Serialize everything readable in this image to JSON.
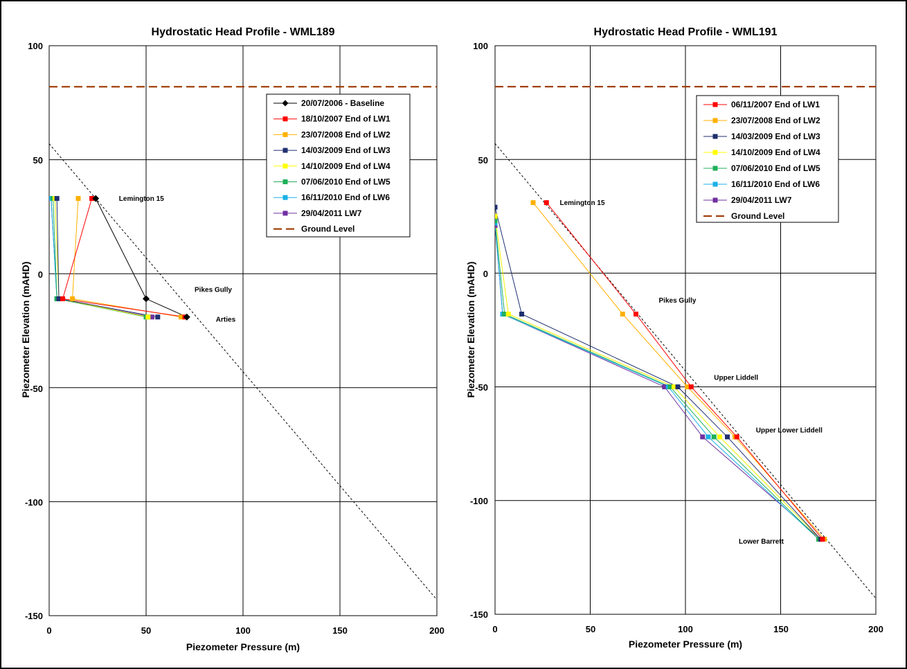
{
  "colors": {
    "baseline": "#000000",
    "lw1": "#ff0000",
    "lw2": "#ffb000",
    "lw3": "#1f2f6f",
    "lw4": "#ffff00",
    "lw5": "#1fb05a",
    "lw6": "#1ab0e8",
    "lw7": "#7030a0",
    "ground": "#a0400a",
    "guide": "#000000"
  },
  "chart_data": [
    {
      "type": "line",
      "title": "Hydrostatic Head Profile - WML189",
      "xlabel": "Piezometer Pressure (m)",
      "ylabel": "Piezometer Elevation (mAHD)",
      "xlim": [
        0,
        200
      ],
      "ylim": [
        -150,
        100
      ],
      "xticks": [
        "0",
        "50",
        "100",
        "150",
        "200"
      ],
      "yticks": [
        "100",
        "50",
        "0",
        "-50",
        "-100",
        "-150"
      ],
      "grid": true,
      "legend_position": "top-right",
      "series": [
        {
          "name": "20/07/2006  - Baseline",
          "color_key": "baseline",
          "marker": "diamond",
          "points": [
            [
              24,
              33
            ],
            [
              50,
              -11
            ],
            [
              71,
              -19
            ]
          ]
        },
        {
          "name": "18/10/2007 End of LW1",
          "color_key": "lw1",
          "marker": "square",
          "points": [
            [
              22,
              33
            ],
            [
              7,
              -11
            ],
            [
              70,
              -19
            ]
          ]
        },
        {
          "name": "23/07/2008 End of LW2",
          "color_key": "lw2",
          "marker": "square",
          "points": [
            [
              15,
              33
            ],
            [
              12,
              -11
            ],
            [
              68,
              -19
            ]
          ]
        },
        {
          "name": "14/03/2009 End of LW3",
          "color_key": "lw3",
          "marker": "square",
          "points": [
            [
              4,
              33
            ],
            [
              5,
              -11
            ],
            [
              56,
              -19
            ]
          ]
        },
        {
          "name": "14/10/2009 End of LW4",
          "color_key": "lw4",
          "marker": "square",
          "points": [
            [
              3,
              33
            ],
            [
              5,
              -11
            ],
            [
              51,
              -19
            ]
          ]
        },
        {
          "name": "07/06/2010 End of LW5",
          "color_key": "lw5",
          "marker": "square",
          "points": [
            [
              2,
              33
            ],
            [
              4,
              -11
            ],
            [
              50,
              -19
            ]
          ]
        },
        {
          "name": "16/11/2010 End of LW6",
          "color_key": "lw6",
          "marker": "square",
          "points": [
            [
              1,
              33
            ],
            [
              4,
              -11
            ],
            [
              51,
              -19
            ]
          ]
        },
        {
          "name": "29/04/2011 LW7",
          "color_key": "lw7",
          "marker": "square",
          "points": [
            [
              1,
              33
            ],
            [
              4,
              -11
            ],
            [
              53,
              -19
            ]
          ]
        },
        {
          "name": "Ground Level",
          "color_key": "ground",
          "style": "dashed-thick",
          "points": [
            [
              0,
              82
            ],
            [
              200,
              82
            ]
          ]
        }
      ],
      "hydrostatic_line": {
        "points": [
          [
            0,
            57
          ],
          [
            200,
            -143
          ]
        ]
      },
      "annotations": [
        {
          "text": "Lemington 15",
          "x": 36,
          "y": 32
        },
        {
          "text": "Pikes Gully",
          "x": 75,
          "y": -8
        },
        {
          "text": "Arties",
          "x": 86,
          "y": -21
        }
      ]
    },
    {
      "type": "line",
      "title": "Hydrostatic Head Profile - WML191",
      "xlabel": "Piezometer Pressure (m)",
      "ylabel": "Piezometer Elevation (mAHD)",
      "xlim": [
        0,
        200
      ],
      "ylim": [
        -150,
        100
      ],
      "xticks": [
        "0",
        "50",
        "100",
        "150",
        "200"
      ],
      "yticks": [
        "100",
        "50",
        "0",
        "-50",
        "-100",
        "-150"
      ],
      "grid": true,
      "legend_position": "top-right",
      "series": [
        {
          "name": "06/11/2007 End of LW1",
          "color_key": "lw1",
          "marker": "square",
          "points": [
            [
              27,
              31
            ],
            [
              74,
              -18
            ],
            [
              103,
              -50
            ],
            [
              127,
              -72
            ],
            [
              172,
              -117
            ]
          ]
        },
        {
          "name": "23/07/2008 End of LW2",
          "color_key": "lw2",
          "marker": "square",
          "points": [
            [
              20,
              31
            ],
            [
              67,
              -18
            ],
            [
              101,
              -50
            ],
            [
              126,
              -72
            ],
            [
              173,
              -117
            ]
          ]
        },
        {
          "name": "14/03/2009 End of LW3",
          "color_key": "lw3",
          "marker": "square",
          "points": [
            [
              0,
              29
            ],
            [
              14,
              -18
            ],
            [
              96,
              -50
            ],
            [
              122,
              -72
            ],
            [
              171,
              -117
            ]
          ]
        },
        {
          "name": "14/10/2009 End of LW4",
          "color_key": "lw4",
          "marker": "square",
          "points": [
            [
              0,
              25
            ],
            [
              7,
              -18
            ],
            [
              94,
              -50
            ],
            [
              118,
              -72
            ],
            [
              171,
              -117
            ]
          ]
        },
        {
          "name": "07/06/2010 End of LW5",
          "color_key": "lw5",
          "marker": "square",
          "points": [
            [
              0,
              23
            ],
            [
              5,
              -18
            ],
            [
              92,
              -50
            ],
            [
              115,
              -72
            ],
            [
              170,
              -117
            ]
          ]
        },
        {
          "name": "16/11/2010 End of LW6",
          "color_key": "lw6",
          "marker": "square",
          "points": [
            [
              0,
              22
            ],
            [
              4,
              -18
            ],
            [
              91,
              -50
            ],
            [
              112,
              -72
            ],
            [
              170,
              -117
            ]
          ]
        },
        {
          "name": "29/04/2011 LW7",
          "color_key": "lw7",
          "marker": "square",
          "points": [
            [
              0,
              21
            ],
            [
              4,
              -18
            ],
            [
              89,
              -50
            ],
            [
              109,
              -72
            ],
            [
              171,
              -117
            ]
          ]
        },
        {
          "name": "Ground Level",
          "color_key": "ground",
          "style": "dashed-thick",
          "points": [
            [
              0,
              82
            ],
            [
              200,
              82
            ]
          ]
        }
      ],
      "hydrostatic_line": {
        "points": [
          [
            0,
            57
          ],
          [
            200,
            -143
          ]
        ]
      },
      "annotations": [
        {
          "text": "Lemington 15",
          "x": 34,
          "y": 30
        },
        {
          "text": "Pikes Gully",
          "x": 86,
          "y": -13
        },
        {
          "text": "Upper Liddell",
          "x": 115,
          "y": -47
        },
        {
          "text": "Upper Lower Liddell",
          "x": 137,
          "y": -70
        },
        {
          "text": "Lower Barrett",
          "x": 128,
          "y": -119
        }
      ]
    }
  ]
}
